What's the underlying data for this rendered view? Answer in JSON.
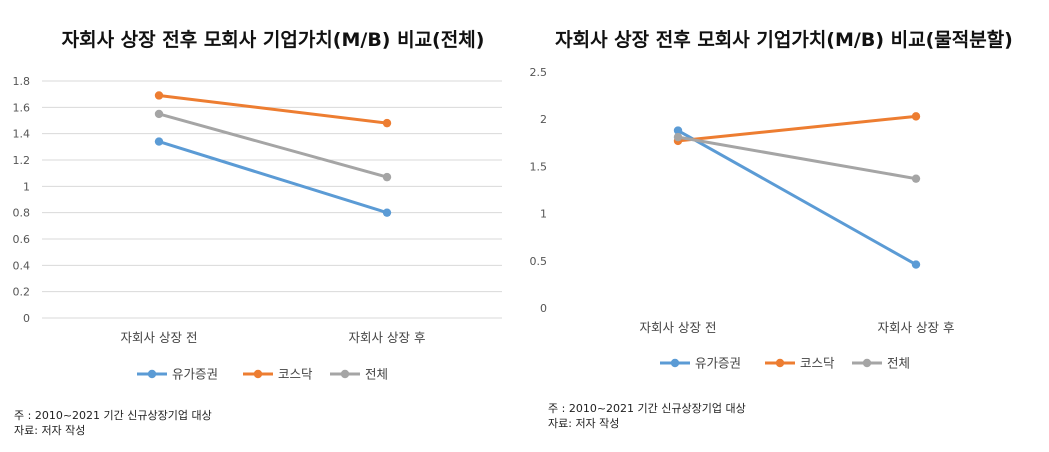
{
  "chart_data": [
    {
      "type": "line",
      "title": "자회사 상장 전후 모회사 기업가치(M/B) 비교(전체)",
      "categories": [
        "자회사 상장 전",
        "자회사 상장 후"
      ],
      "series": [
        {
          "name": "유가증권",
          "color": "#5B9BD5",
          "values": [
            1.34,
            0.8
          ]
        },
        {
          "name": "코스닥",
          "color": "#ED7D31",
          "values": [
            1.69,
            1.48
          ]
        },
        {
          "name": "전체",
          "color": "#A5A5A5",
          "values": [
            1.55,
            1.07
          ]
        }
      ],
      "y_ticks": [
        "1.8",
        "1.6",
        "1.4",
        "1.2",
        "1",
        "0.8",
        "0.6",
        "0.4",
        "0.2",
        "0"
      ],
      "ylim": [
        0,
        1.8
      ],
      "grid": true,
      "legend": "bottom"
    },
    {
      "type": "line",
      "title": "자회사 상장 전후 모회사 기업가치(M/B) 비교(물적분할)",
      "categories": [
        "자회사 상장 전",
        "자회사 상장 후"
      ],
      "series": [
        {
          "name": "유가증권",
          "color": "#5B9BD5",
          "values": [
            1.88,
            0.46
          ]
        },
        {
          "name": "코스닥",
          "color": "#ED7D31",
          "values": [
            1.77,
            2.03
          ]
        },
        {
          "name": "전체",
          "color": "#A5A5A5",
          "values": [
            1.81,
            1.37
          ]
        }
      ],
      "y_ticks": [
        "2.5",
        "2",
        "1.5",
        "1",
        "0.5",
        "0"
      ],
      "ylim": [
        0,
        2.5
      ],
      "grid": false,
      "legend": "bottom"
    }
  ],
  "notes": [
    {
      "line1": "주   : 2010~2021 기간 신규상장기업 대상",
      "line2": "자료: 저자 작성"
    },
    {
      "line1": "주   : 2010~2021 기간 신규상장기업 대상",
      "line2": "자료: 저자 작성"
    }
  ]
}
